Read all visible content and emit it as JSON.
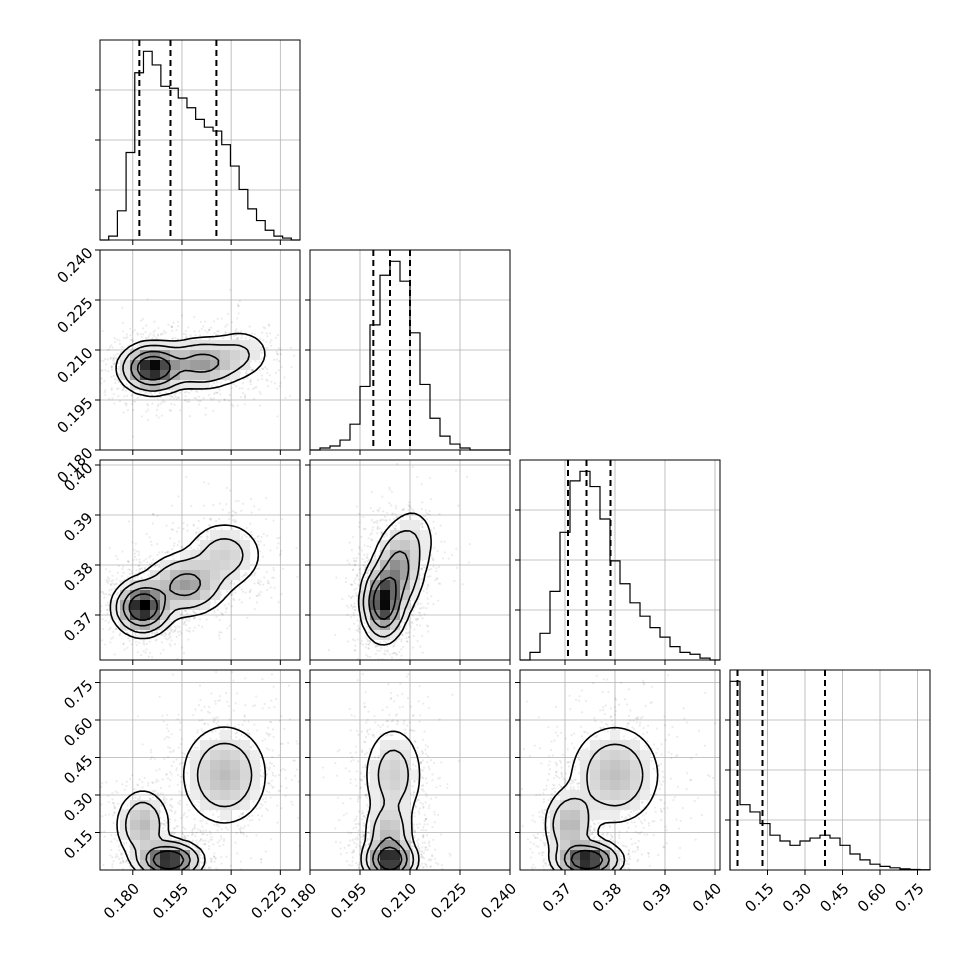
{
  "chart_data": {
    "type": "corner",
    "grid": true,
    "parameters": [
      {
        "range": [
          0.17,
          0.231
        ],
        "ticks": [
          0.18,
          0.195,
          0.21,
          0.225
        ],
        "tick_labels": [
          "0.180",
          "0.195",
          "0.210",
          "0.225"
        ],
        "quantiles": [
          0.182,
          0.1915,
          0.2055
        ],
        "hist": [
          0.0,
          0.02,
          0.15,
          0.45,
          0.86,
          0.97,
          0.9,
          0.79,
          0.78,
          0.73,
          0.68,
          0.62,
          0.58,
          0.56,
          0.49,
          0.38,
          0.26,
          0.16,
          0.1,
          0.05,
          0.02,
          0.01,
          0.0
        ]
      },
      {
        "range": [
          0.18,
          0.24
        ],
        "ticks": [
          0.18,
          0.195,
          0.21,
          0.225,
          0.24
        ],
        "tick_labels": [
          "0.180",
          "0.195",
          "0.210",
          "0.225",
          "0.240"
        ],
        "quantiles": [
          0.199,
          0.204,
          0.21
        ],
        "hist": [
          0.0,
          0.01,
          0.02,
          0.05,
          0.13,
          0.32,
          0.63,
          0.88,
          0.95,
          0.85,
          0.59,
          0.33,
          0.16,
          0.07,
          0.03,
          0.01,
          0.0,
          0.0,
          0.0,
          0.0
        ]
      },
      {
        "range": [
          0.361,
          0.401
        ],
        "ticks": [
          0.37,
          0.38,
          0.39,
          0.4
        ],
        "tick_labels": [
          "0.37",
          "0.38",
          "0.39",
          "0.40"
        ],
        "quantiles": [
          0.3706,
          0.3743,
          0.3791
        ],
        "hist": [
          0.0,
          0.04,
          0.14,
          0.36,
          0.67,
          0.94,
          0.99,
          0.91,
          0.74,
          0.52,
          0.4,
          0.3,
          0.23,
          0.17,
          0.12,
          0.07,
          0.04,
          0.03,
          0.01,
          0.0
        ]
      },
      {
        "range": [
          0.0,
          0.8
        ],
        "ticks": [
          0.15,
          0.3,
          0.45,
          0.6,
          0.75
        ],
        "tick_labels": [
          "0.15",
          "0.30",
          "0.45",
          "0.60",
          "0.75"
        ],
        "quantiles": [
          0.03,
          0.13,
          0.38
        ],
        "hist": [
          1.3,
          0.45,
          0.4,
          0.32,
          0.24,
          0.2,
          0.17,
          0.2,
          0.22,
          0.24,
          0.22,
          0.17,
          0.11,
          0.07,
          0.04,
          0.025,
          0.015,
          0.008,
          0.004,
          0.002
        ]
      }
    ],
    "pairs": [
      {
        "x": 0,
        "y": 1,
        "modes": [
          {
            "mx": 0.186,
            "my": 0.2045,
            "sx": 0.0045,
            "sy": 0.0034,
            "w": 0.55
          },
          {
            "mx": 0.201,
            "my": 0.206,
            "sx": 0.006,
            "sy": 0.0036,
            "w": 0.35
          },
          {
            "mx": 0.213,
            "my": 0.209,
            "sx": 0.005,
            "sy": 0.004,
            "w": 0.1
          }
        ]
      },
      {
        "x": 0,
        "y": 2,
        "modes": [
          {
            "mx": 0.183,
            "my": 0.3715,
            "sx": 0.004,
            "sy": 0.0025,
            "w": 0.45
          },
          {
            "mx": 0.196,
            "my": 0.376,
            "sx": 0.006,
            "sy": 0.003,
            "w": 0.35
          },
          {
            "mx": 0.208,
            "my": 0.382,
            "sx": 0.006,
            "sy": 0.0035,
            "w": 0.2
          }
        ]
      },
      {
        "x": 1,
        "y": 2,
        "modes": [
          {
            "mx": 0.202,
            "my": 0.3725,
            "sx": 0.003,
            "sy": 0.0035,
            "w": 0.55
          },
          {
            "mx": 0.2065,
            "my": 0.379,
            "sx": 0.0035,
            "sy": 0.004,
            "w": 0.35
          },
          {
            "mx": 0.211,
            "my": 0.385,
            "sx": 0.004,
            "sy": 0.004,
            "w": 0.1
          }
        ]
      },
      {
        "x": 0,
        "y": 3,
        "modes": [
          {
            "mx": 0.183,
            "my": 0.18,
            "sx": 0.004,
            "sy": 0.07,
            "w": 0.2
          },
          {
            "mx": 0.191,
            "my": 0.04,
            "sx": 0.0045,
            "sy": 0.035,
            "w": 0.35
          },
          {
            "mx": 0.208,
            "my": 0.38,
            "sx": 0.0065,
            "sy": 0.1,
            "w": 0.45
          }
        ]
      },
      {
        "x": 1,
        "y": 3,
        "modes": [
          {
            "mx": 0.204,
            "my": 0.04,
            "sx": 0.0035,
            "sy": 0.04,
            "w": 0.45
          },
          {
            "mx": 0.2035,
            "my": 0.15,
            "sx": 0.0035,
            "sy": 0.06,
            "w": 0.2
          },
          {
            "mx": 0.205,
            "my": 0.38,
            "sx": 0.0045,
            "sy": 0.1,
            "w": 0.35
          }
        ]
      },
      {
        "x": 2,
        "y": 3,
        "modes": [
          {
            "mx": 0.371,
            "my": 0.18,
            "sx": 0.0025,
            "sy": 0.07,
            "w": 0.2
          },
          {
            "mx": 0.3745,
            "my": 0.04,
            "sx": 0.003,
            "sy": 0.035,
            "w": 0.35
          },
          {
            "mx": 0.38,
            "my": 0.38,
            "sx": 0.0045,
            "sy": 0.1,
            "w": 0.45
          }
        ]
      }
    ]
  }
}
